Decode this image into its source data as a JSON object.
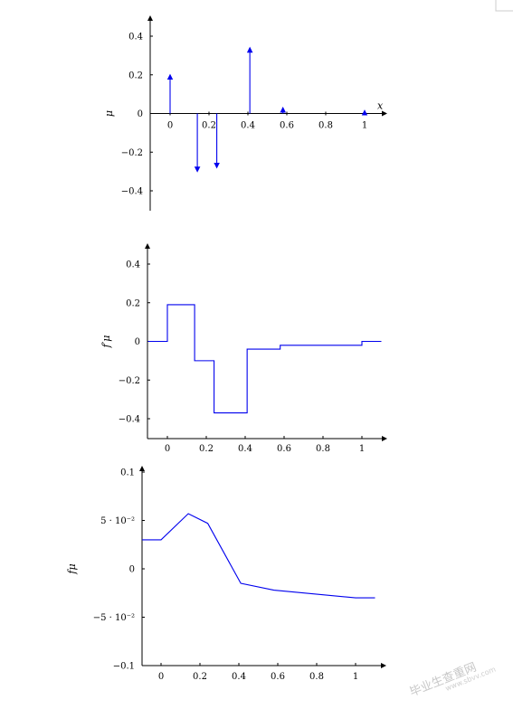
{
  "chart_data": [
    {
      "type": "stem",
      "xlabel": "x",
      "ylabel": "μ",
      "xlim": [
        -0.05,
        1.08
      ],
      "ylim": [
        -0.5,
        0.5
      ],
      "xticks": [
        0,
        0.2,
        0.4,
        0.6,
        0.8,
        1
      ],
      "xtick_labels": [
        "0",
        "0.2",
        "0.4",
        "0.6",
        "0.8",
        "1"
      ],
      "yticks": [
        -0.4,
        -0.2,
        0,
        0.2,
        0.4
      ],
      "ytick_labels": [
        "−0.4",
        "−0.2",
        "0",
        "0.2",
        "0.4"
      ],
      "x": [
        0,
        0.14,
        0.24,
        0.41,
        0.58,
        1.0
      ],
      "y": [
        0.19,
        -0.29,
        -0.27,
        0.33,
        0.02,
        0.005
      ]
    },
    {
      "type": "step",
      "ylabel": "f′μ",
      "xlim": [
        -0.1,
        1.1
      ],
      "ylim": [
        -0.5,
        0.5
      ],
      "xticks": [
        0,
        0.2,
        0.4,
        0.6,
        0.8,
        1
      ],
      "xtick_labels": [
        "0",
        "0.2",
        "0.4",
        "0.6",
        "0.8",
        "1"
      ],
      "yticks": [
        -0.4,
        -0.2,
        0,
        0.2,
        0.4
      ],
      "ytick_labels": [
        "−0.4",
        "−0.2",
        "0",
        "0.2",
        "0.4"
      ],
      "breakpoints": [
        -0.1,
        0,
        0.14,
        0.24,
        0.41,
        0.58,
        1.0,
        1.1
      ],
      "values": [
        0,
        0.19,
        -0.1,
        -0.37,
        -0.04,
        -0.02,
        0
      ]
    },
    {
      "type": "line",
      "ylabel": "fμ",
      "xlim": [
        -0.1,
        1.1
      ],
      "ylim": [
        -0.1,
        0.1
      ],
      "xticks": [
        0,
        0.2,
        0.4,
        0.6,
        0.8,
        1
      ],
      "xtick_labels": [
        "0",
        "0.2",
        "0.4",
        "0.6",
        "0.8",
        "1"
      ],
      "yticks": [
        -0.1,
        -0.05,
        0,
        0.05,
        0.1
      ],
      "ytick_labels": [
        "−0.1",
        "−5 · 10⁻²",
        "0",
        "5 · 10⁻²",
        "0.1"
      ],
      "x": [
        -0.1,
        0,
        0.14,
        0.24,
        0.41,
        0.58,
        1.0,
        1.1
      ],
      "y": [
        0.03,
        0.03,
        0.057,
        0.047,
        -0.015,
        -0.022,
        -0.03,
        -0.03
      ]
    }
  ],
  "watermark": {
    "main": "毕业生查重网",
    "url": "www.sbvv.com"
  },
  "colors": {
    "series": "#0000ee",
    "axis": "#000000",
    "watermark": "#c8c8c8"
  }
}
